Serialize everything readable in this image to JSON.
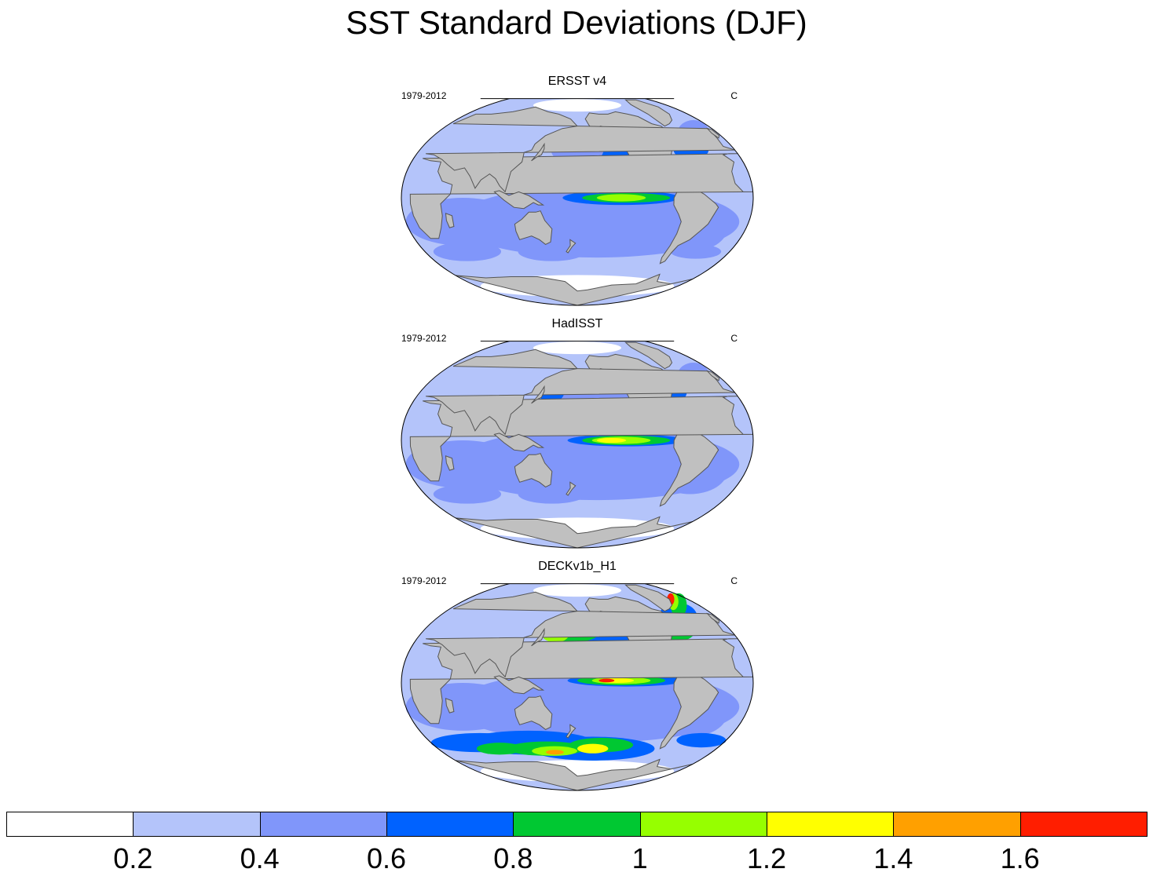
{
  "title": "SST Standard Deviations (DJF)",
  "colors": {
    "land": "#c0c0c0",
    "coast": "#555555",
    "levels": [
      "#ffffff",
      "#b4c4fa",
      "#8096fa",
      "#0062ff",
      "#00c832",
      "#96ff00",
      "#ffff00",
      "#ffa000",
      "#ff1e00"
    ]
  },
  "panels": [
    {
      "title": "ERSST v4",
      "left_label": "1979-2012",
      "right_label": "C",
      "profile": "ersst"
    },
    {
      "title": "HadISST",
      "left_label": "1979-2012",
      "right_label": "C",
      "profile": "hadisst"
    },
    {
      "title": "DECKv1b_H1",
      "left_label": "1979-2012",
      "right_label": "C",
      "profile": "deck"
    }
  ],
  "colorbar": {
    "labels": [
      "0.2",
      "0.4",
      "0.6",
      "0.8",
      "1",
      "1.2",
      "1.4",
      "1.6"
    ]
  }
}
